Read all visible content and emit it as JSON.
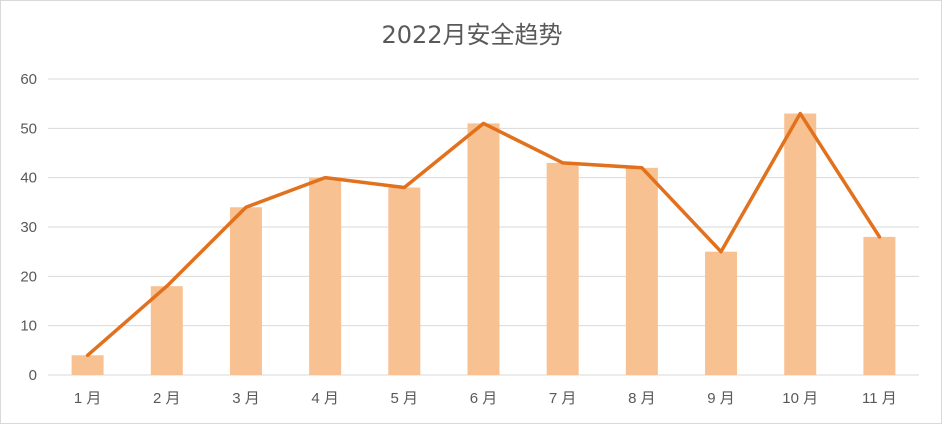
{
  "chart_data": {
    "type": "bar",
    "title": "2022月安全趋势",
    "categories": [
      "1 月",
      "2 月",
      "3 月",
      "4 月",
      "5 月",
      "6 月",
      "7 月",
      "8 月",
      "9 月",
      "10 月",
      "11 月"
    ],
    "series": [
      {
        "type": "bar",
        "values": [
          4,
          18,
          34,
          40,
          38,
          51,
          43,
          42,
          25,
          53,
          28
        ]
      },
      {
        "type": "line",
        "values": [
          4,
          18,
          34,
          40,
          38,
          51,
          43,
          42,
          25,
          53,
          28
        ]
      }
    ],
    "ylim": [
      0,
      60
    ],
    "yticks": [
      "0",
      "10",
      "20",
      "30",
      "40",
      "50",
      "60"
    ],
    "grid": true,
    "legend": "none",
    "colors": {
      "bar": "#f8c192",
      "line": "#e2711d",
      "grid": "#d9d9d9",
      "text": "#595959"
    }
  }
}
